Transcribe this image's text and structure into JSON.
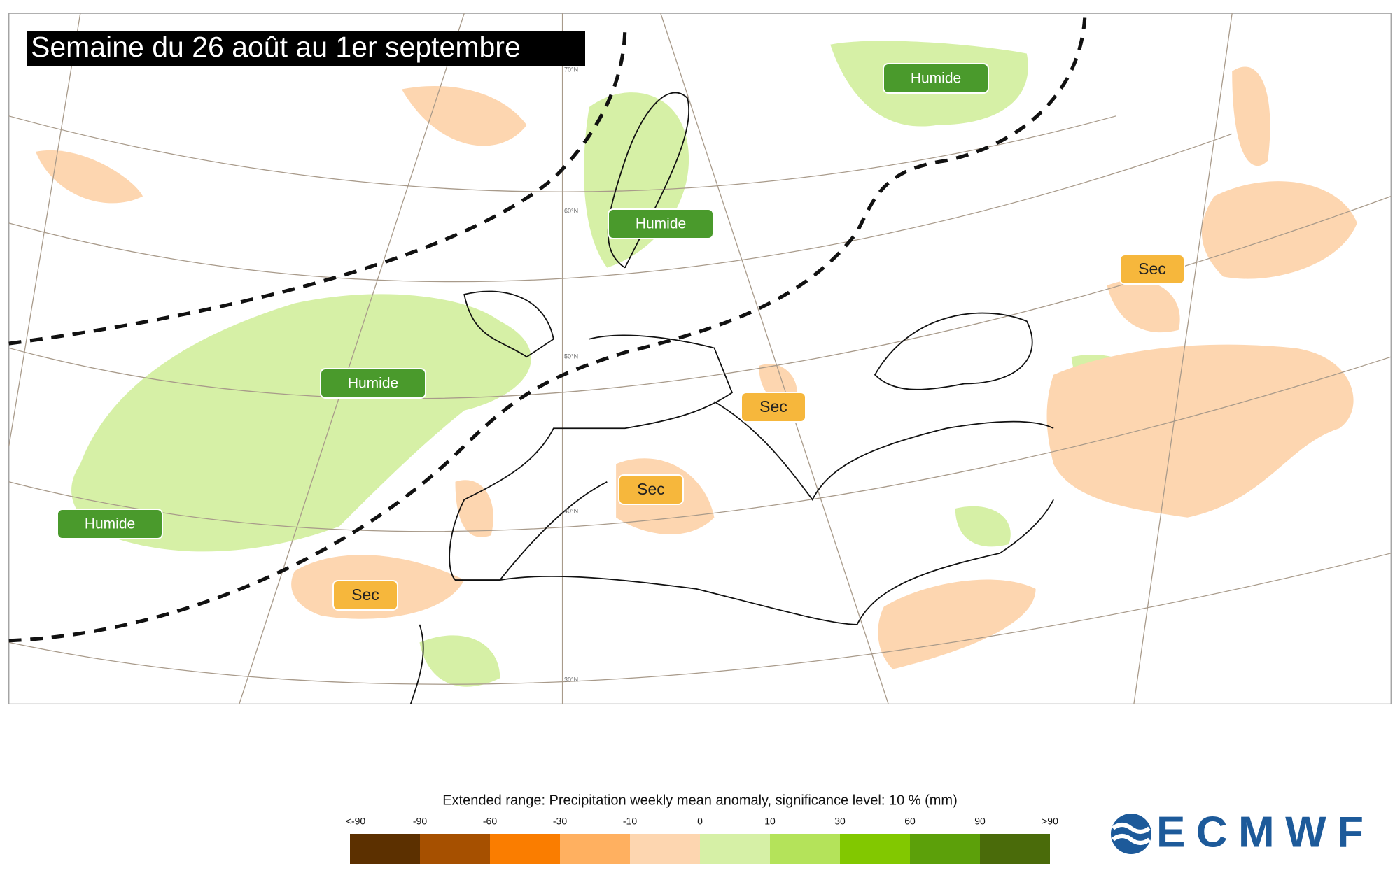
{
  "title": "Semaine du 26 août au 1er septembre",
  "map": {
    "labels": [
      "Humide",
      "Humide",
      "Humide",
      "Humide",
      "Sec",
      "Sec",
      "Sec",
      "Sec"
    ],
    "latitudes": [
      "70°N",
      "60°N",
      "50°N",
      "40°N",
      "30°N"
    ]
  },
  "legend": {
    "title": "Extended range: Precipitation weekly mean anomaly, significance level: 10 % (mm)",
    "ticks": [
      "<-90",
      "-90",
      "-60",
      "-30",
      "-10",
      "0",
      "10",
      "30",
      "60",
      "90",
      ">90"
    ],
    "colors": [
      "#5c3000",
      "#a65000",
      "#fa7d00",
      "#ffb060",
      "#fdd6b0",
      "#d6f0a6",
      "#b4e35a",
      "#82c800",
      "#5ca00a",
      "#4a6b0a"
    ]
  },
  "logo": "ECMWF"
}
